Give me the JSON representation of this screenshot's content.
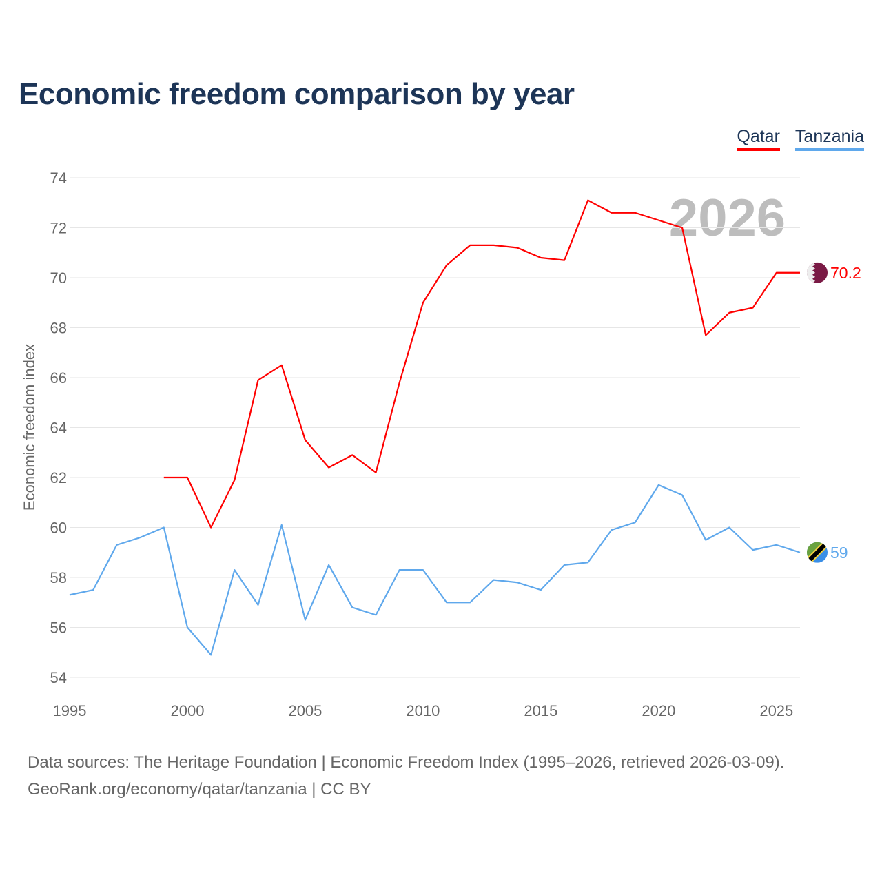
{
  "title": "Economic freedom comparison by year",
  "legend": [
    {
      "name": "Qatar",
      "color": "#ff0000"
    },
    {
      "name": "Tanzania",
      "color": "#5fa8ec"
    }
  ],
  "footer": {
    "line1": "Data sources: The Heritage Foundation | Economic Freedom Index (1995–2026, retrieved 2026-03-09).",
    "line2": "GeoRank.org/economy/qatar/tanzania | CC BY"
  },
  "chart_data": {
    "type": "line",
    "title": "Economic freedom comparison by year",
    "ylabel": "Economic freedom index",
    "xlabel": "",
    "year_watermark": "2026",
    "xlim": [
      1995,
      2026
    ],
    "ylim": [
      54,
      74
    ],
    "xticks": [
      "1995",
      "2000",
      "2005",
      "2010",
      "2015",
      "2020",
      "2025"
    ],
    "yticks": [
      "54",
      "56",
      "58",
      "60",
      "62",
      "64",
      "66",
      "68",
      "70",
      "72",
      "74"
    ],
    "grid": true,
    "legend_position": "top-right",
    "series": [
      {
        "name": "Qatar",
        "color": "#ff0000",
        "end_label": "70.2",
        "x": [
          1999,
          2000,
          2001,
          2002,
          2003,
          2004,
          2005,
          2006,
          2007,
          2008,
          2009,
          2010,
          2011,
          2012,
          2013,
          2014,
          2015,
          2016,
          2017,
          2018,
          2019,
          2020,
          2021,
          2022,
          2023,
          2024,
          2025,
          2026
        ],
        "y": [
          62.0,
          62.0,
          60.0,
          61.9,
          65.9,
          66.5,
          63.5,
          62.4,
          62.9,
          62.2,
          65.8,
          69.0,
          70.5,
          71.3,
          71.3,
          71.2,
          70.8,
          70.7,
          73.1,
          72.6,
          72.6,
          72.3,
          72.0,
          67.7,
          68.6,
          68.8,
          70.2,
          70.2
        ]
      },
      {
        "name": "Tanzania",
        "color": "#5fa8ec",
        "end_label": "59",
        "x": [
          1995,
          1996,
          1997,
          1998,
          1999,
          2000,
          2001,
          2002,
          2003,
          2004,
          2005,
          2006,
          2007,
          2008,
          2009,
          2010,
          2011,
          2012,
          2013,
          2014,
          2015,
          2016,
          2017,
          2018,
          2019,
          2020,
          2021,
          2022,
          2023,
          2024,
          2025,
          2026
        ],
        "y": [
          57.3,
          57.5,
          59.3,
          59.6,
          60.0,
          56.0,
          54.9,
          58.3,
          56.9,
          60.1,
          56.3,
          58.5,
          56.8,
          56.5,
          58.3,
          58.3,
          57.0,
          57.0,
          57.9,
          57.8,
          57.5,
          58.5,
          58.6,
          59.9,
          60.2,
          61.7,
          61.3,
          59.5,
          60.0,
          59.1,
          59.3,
          59.0
        ]
      }
    ]
  }
}
